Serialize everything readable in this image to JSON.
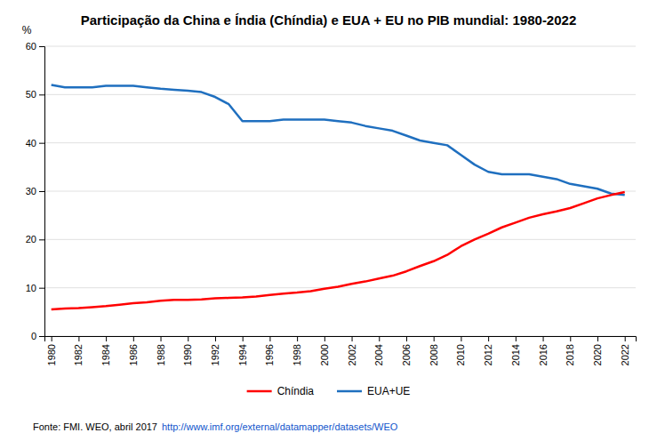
{
  "chart_data": {
    "type": "line",
    "title": "Participação da China e Índia (Chíndia) e EUA + EU no PIB mundial: 1980-2022",
    "y_label": "%",
    "x": [
      1980,
      1981,
      1982,
      1983,
      1984,
      1985,
      1986,
      1987,
      1988,
      1989,
      1990,
      1991,
      1992,
      1993,
      1994,
      1995,
      1996,
      1997,
      1998,
      1999,
      2000,
      2001,
      2002,
      2003,
      2004,
      2005,
      2006,
      2007,
      2008,
      2009,
      2010,
      2011,
      2012,
      2013,
      2014,
      2015,
      2016,
      2017,
      2018,
      2019,
      2020,
      2021,
      2022
    ],
    "series": [
      {
        "name": "Chíndia",
        "color": "#FF0000",
        "values": [
          5.5,
          5.7,
          5.8,
          6.0,
          6.2,
          6.5,
          6.8,
          7.0,
          7.3,
          7.5,
          7.5,
          7.6,
          7.8,
          7.9,
          8.0,
          8.2,
          8.5,
          8.8,
          9.0,
          9.3,
          9.8,
          10.2,
          10.8,
          11.3,
          11.9,
          12.5,
          13.4,
          14.5,
          15.5,
          16.8,
          18.6,
          20.0,
          21.2,
          22.5,
          23.5,
          24.5,
          25.2,
          25.8,
          26.5,
          27.5,
          28.5,
          29.2,
          29.8
        ]
      },
      {
        "name": "EUA+UE",
        "color": "#1F6FBF",
        "values": [
          52.0,
          51.5,
          51.5,
          51.5,
          51.8,
          51.8,
          51.8,
          51.5,
          51.2,
          51.0,
          50.8,
          50.5,
          49.5,
          48.0,
          44.5,
          44.5,
          44.5,
          44.8,
          44.8,
          44.8,
          44.8,
          44.5,
          44.2,
          43.5,
          43.0,
          42.5,
          41.5,
          40.5,
          40.0,
          39.5,
          37.5,
          35.5,
          34.0,
          33.5,
          33.5,
          33.5,
          33.0,
          32.5,
          31.5,
          31.0,
          30.5,
          29.5,
          29.2
        ]
      }
    ],
    "xlim": [
      1979.5,
      2022.8
    ],
    "xticks": [
      1980,
      1982,
      1984,
      1986,
      1988,
      1990,
      1992,
      1994,
      1996,
      1998,
      2000,
      2002,
      2004,
      2006,
      2008,
      2010,
      2012,
      2014,
      2016,
      2018,
      2020,
      2022
    ],
    "ylim": [
      0,
      60
    ],
    "yticks": [
      0,
      10,
      20,
      30,
      40,
      50,
      60
    ],
    "grid": true,
    "legend": "bottom",
    "annotations": [
      "Fonte: FMI. WEO, abril 2017",
      "http://www.imf.org/external/datamapper/datasets/WEO"
    ]
  }
}
